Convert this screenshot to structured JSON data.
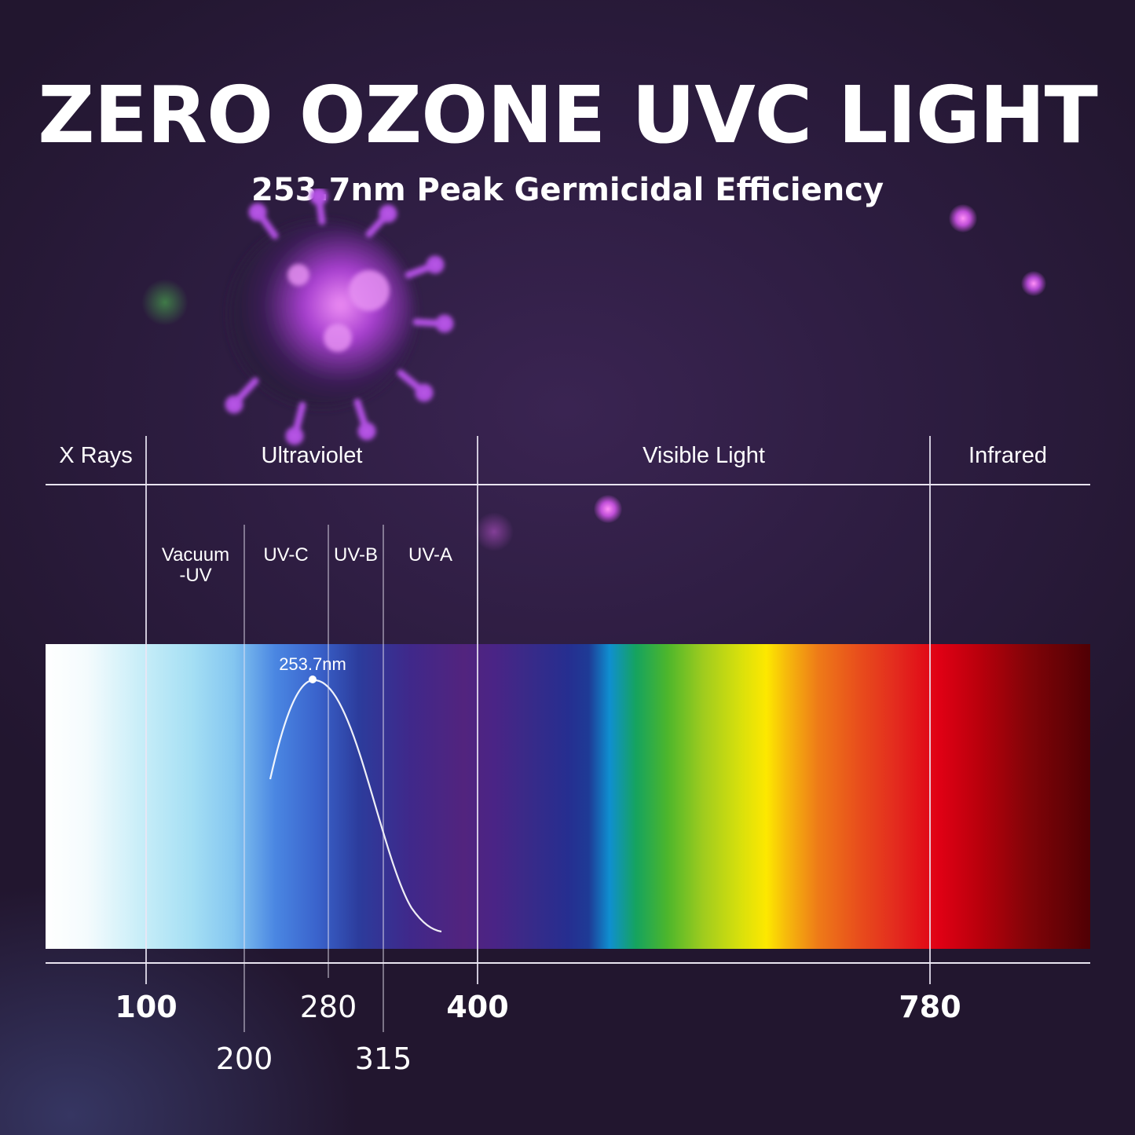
{
  "title": "ZERO OZONE UVC LIGHT",
  "subtitle": "253.7nm Peak Germicidal Efficiency",
  "regions": {
    "x_rays": "X Rays",
    "ultraviolet": "Ultraviolet",
    "visible": "Visible Light",
    "infrared": "Infrared"
  },
  "bands": {
    "vacuum_line1": "Vacuum",
    "vacuum_line2": "-UV",
    "uvc": "UV-C",
    "uvb": "UV-B",
    "uva": "UV-A"
  },
  "peak_label": "253.7nm",
  "ticks": {
    "t100": "100",
    "t200": "200",
    "t280": "280",
    "t315": "315",
    "t400": "400",
    "t780": "780"
  },
  "chart_data": {
    "type": "line",
    "title": "ZERO OZONE UVC LIGHT",
    "subtitle": "253.7nm Peak Germicidal Efficiency",
    "xlabel": "",
    "ylabel": "",
    "peak_wavelength_nm": 253.7,
    "boundaries_nm": [
      100,
      200,
      280,
      315,
      400,
      780
    ],
    "curve_shape": "germicidal efficiency curve peaking at 253.7nm, falling off toward UV-A"
  }
}
